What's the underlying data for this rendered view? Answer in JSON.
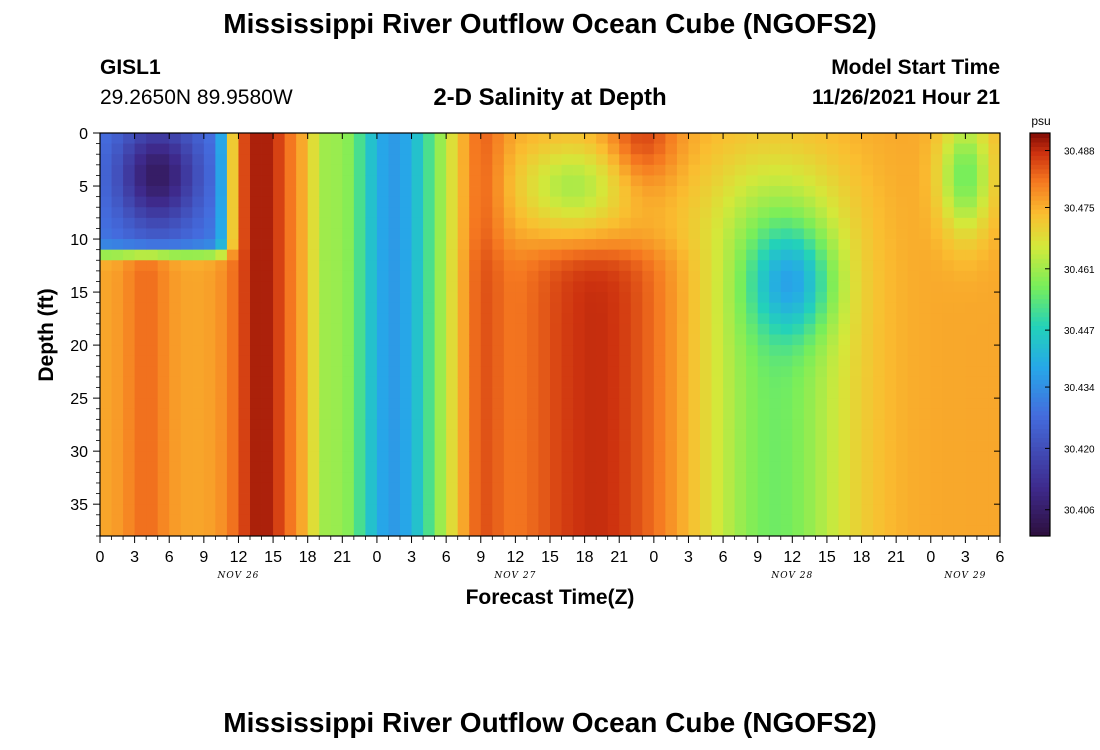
{
  "header": {
    "title": "Mississippi River Outflow Ocean Cube (NGOFS2)",
    "station": "GISL1",
    "coords": "29.2650N  89.9580W",
    "subtitle": "2-D Salinity at Depth",
    "model_start_label": "Model Start Time",
    "model_start_value": "11/26/2021 Hour 21"
  },
  "footer": {
    "title": "Mississippi River Outflow Ocean Cube (NGOFS2)"
  },
  "chart_data": {
    "type": "heatmap",
    "title": "2-D Salinity at Depth",
    "xlabel": "Forecast Time(Z)",
    "ylabel": "Depth (ft)",
    "x_hours_range": [
      0,
      78
    ],
    "x_tick_hours": [
      0,
      3,
      6,
      9,
      12,
      15,
      18,
      21,
      24,
      27,
      30,
      33,
      36,
      39,
      42,
      45,
      48,
      51,
      54,
      57,
      60,
      63,
      66,
      69,
      72,
      75,
      78
    ],
    "x_tick_labels": [
      "0",
      "3",
      "6",
      "9",
      "12",
      "15",
      "18",
      "21",
      "0",
      "3",
      "6",
      "9",
      "12",
      "15",
      "18",
      "21",
      "0",
      "3",
      "6",
      "9",
      "12",
      "15",
      "18",
      "21",
      "0",
      "3",
      "6"
    ],
    "date_labels": [
      {
        "text": "NOV 26",
        "hour": 12
      },
      {
        "text": "NOV 27",
        "hour": 36
      },
      {
        "text": "NOV 28",
        "hour": 60
      },
      {
        "text": "NOV 29",
        "hour": 75
      }
    ],
    "y_range": [
      0,
      38
    ],
    "y_ticks": [
      0,
      5,
      10,
      15,
      20,
      25,
      30,
      35
    ],
    "colorbar": {
      "unit": "psu",
      "range": [
        30.4,
        30.492
      ],
      "tick_values": [
        30.406,
        30.42,
        30.434,
        30.447,
        30.461,
        30.475,
        30.488
      ],
      "tick_labels": [
        "30.406",
        "30.420",
        "30.434",
        "30.447",
        "30.461",
        "30.475",
        "30.488"
      ]
    },
    "features": [
      {
        "t0": 0,
        "t1": 11,
        "d0": 0,
        "d1": 11,
        "value": 30.405,
        "note": "low salinity pocket near surface, start of forecast"
      },
      {
        "t0": 11,
        "t1": 18,
        "d0": 0,
        "d1": 38,
        "value": 30.49,
        "note": "high salinity band"
      },
      {
        "t0": 20,
        "t1": 31,
        "d0": 0,
        "d1": 38,
        "value": 30.445,
        "note": "fresher column"
      },
      {
        "t0": 34,
        "t1": 50,
        "d0": 12,
        "d1": 38,
        "value": 30.486,
        "note": "high salinity body"
      },
      {
        "t0": 56,
        "t1": 66,
        "d0": 5,
        "d1": 38,
        "value": 30.447,
        "note": "fresher core around 15 ft"
      },
      {
        "t0": 72,
        "t1": 77,
        "d0": 0,
        "d1": 10,
        "value": 30.447,
        "note": "fresher surface cell"
      }
    ]
  }
}
